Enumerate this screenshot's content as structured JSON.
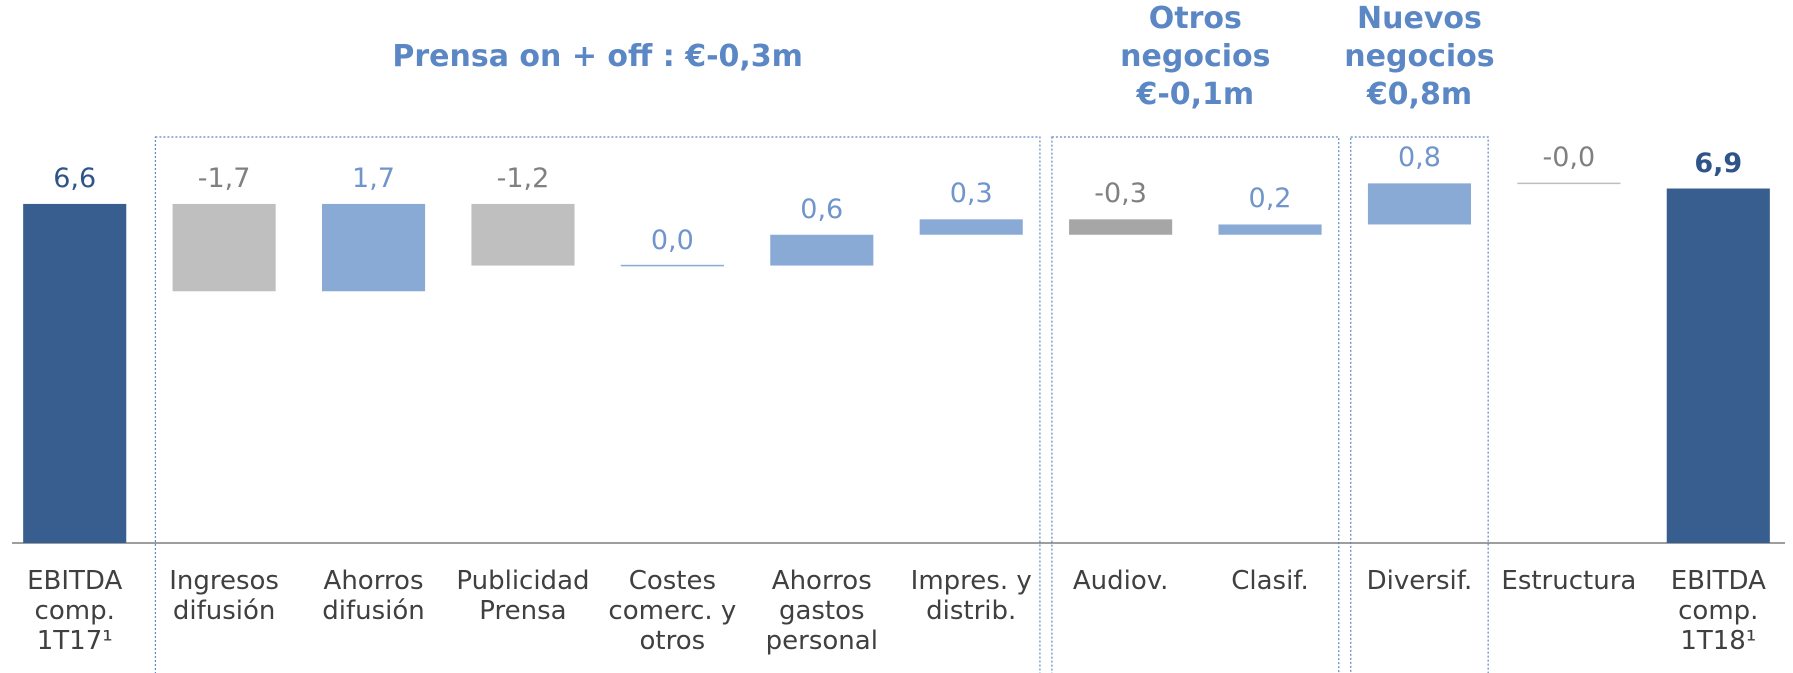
{
  "chart_data": {
    "type": "waterfall",
    "categories": [
      "EBITDA comp. 1T17¹",
      "Ingresos difusión",
      "Ahorros difusión",
      "Publicidad Prensa",
      "Costes comerc. y otros",
      "Ahorros gastos personal",
      "Impres. y distrib.",
      "Audiov.",
      "Clasif.",
      "Diversif.",
      "Estructura",
      "EBITDA comp. 1T18¹"
    ],
    "values": [
      6.6,
      -1.7,
      1.7,
      -1.2,
      0.0,
      0.6,
      0.3,
      -0.3,
      0.2,
      0.8,
      -0.0,
      6.9
    ],
    "value_labels": [
      "6,6",
      "-1,7",
      "1,7",
      "-1,2",
      "0,0",
      "0,6",
      "0,3",
      "-0,3",
      "0,2",
      "0,8",
      "-0,0",
      "6,9"
    ],
    "total_indices": [
      0,
      11
    ],
    "colors": [
      "#375e8f",
      "#bfbfbf",
      "#8aaad6",
      "#bfbfbf",
      "#8aaad6",
      "#8aaad6",
      "#8aaad6",
      "#a6a6a6",
      "#8aaad6",
      "#8aaad6",
      "#bfbfbf",
      "#375e8f"
    ],
    "ylim": [
      0,
      8
    ],
    "groups": [
      {
        "title_lines": [
          "Prensa on + off : €-0,3m"
        ],
        "start": 1,
        "end": 6
      },
      {
        "title_lines": [
          "Otros",
          "negocios",
          "€-0,1m"
        ],
        "start": 7,
        "end": 8
      },
      {
        "title_lines": [
          "Nuevos",
          "negocios",
          "€0,8m"
        ],
        "start": 9,
        "end": 9
      }
    ]
  }
}
